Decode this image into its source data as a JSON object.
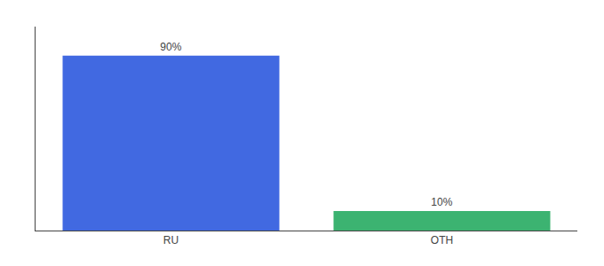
{
  "chart_data": {
    "type": "bar",
    "categories": [
      "RU",
      "OTH"
    ],
    "values": [
      90,
      10
    ],
    "value_labels": [
      "90%",
      "10%"
    ],
    "data_labels": true,
    "colors": [
      "#4169E1",
      "#3CB371"
    ],
    "ylim": [
      0,
      105
    ],
    "grid": false,
    "tick_labels": "x"
  }
}
